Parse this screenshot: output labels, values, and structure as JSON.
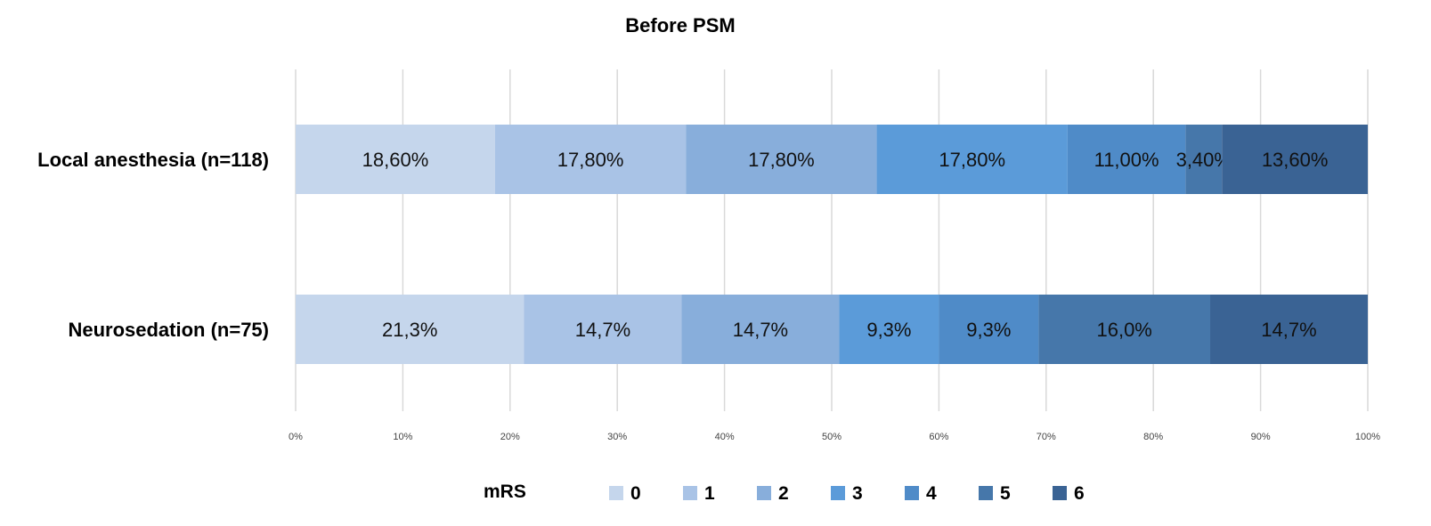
{
  "chart_data": {
    "type": "bar",
    "orientation": "horizontal",
    "stacked": "percent",
    "title": "Before PSM",
    "categories": [
      "Local anesthesia (n=118)",
      "Neurosedation (n=75)"
    ],
    "series": [
      {
        "name": "0",
        "values": [
          18.6,
          21.3
        ],
        "labels": [
          "18,60%",
          "21,3%"
        ],
        "color": "#c5d6ec"
      },
      {
        "name": "1",
        "values": [
          17.8,
          14.7
        ],
        "labels": [
          "17,80%",
          "14,7%"
        ],
        "color": "#a9c3e6"
      },
      {
        "name": "2",
        "values": [
          17.8,
          14.7
        ],
        "labels": [
          "17,80%",
          "14,7%"
        ],
        "color": "#88aedb"
      },
      {
        "name": "3",
        "values": [
          17.8,
          9.3
        ],
        "labels": [
          "17,80%",
          "9,3%"
        ],
        "color": "#5b9bd9"
      },
      {
        "name": "4",
        "values": [
          11.0,
          9.3
        ],
        "labels": [
          "11,00%",
          "9,3%"
        ],
        "color": "#4f8bc8"
      },
      {
        "name": "5",
        "values": [
          3.4,
          16.0
        ],
        "labels": [
          "3,40%",
          "16,0%"
        ],
        "color": "#4677aa"
      },
      {
        "name": "6",
        "values": [
          13.6,
          14.7
        ],
        "labels": [
          "13,60%",
          "14,7%"
        ],
        "color": "#3a6394"
      }
    ],
    "x_ticks": [
      "0%",
      "10%",
      "20%",
      "30%",
      "40%",
      "50%",
      "60%",
      "70%",
      "80%",
      "90%",
      "100%"
    ],
    "xlim": [
      0,
      100
    ],
    "grid": true,
    "legend": {
      "title": "mRS",
      "placement": "bottom"
    }
  }
}
